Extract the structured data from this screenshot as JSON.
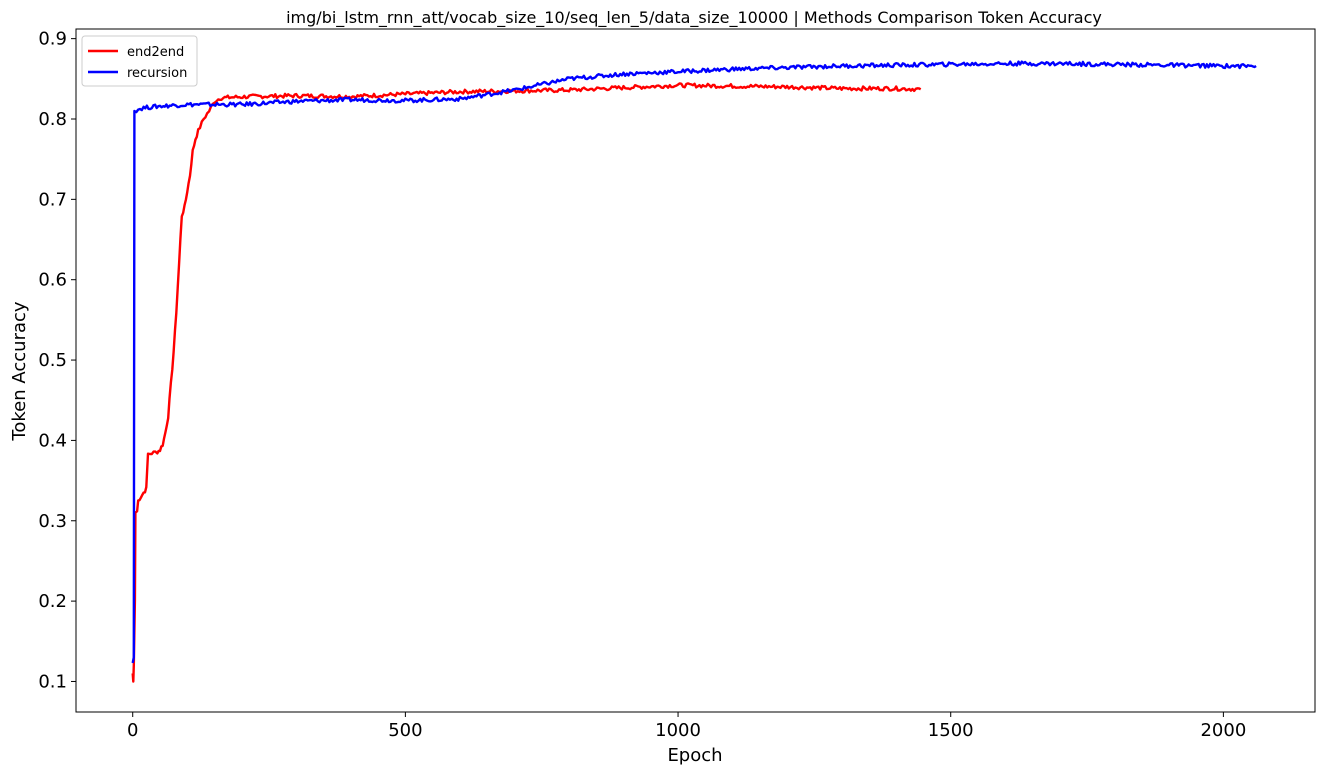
{
  "chart_data": {
    "type": "line",
    "title": "img/bi_lstm_rnn_att/vocab_size_10/seq_len_5/data_size_10000 | Methods Comparison Token Accuracy",
    "xlabel": "Epoch",
    "ylabel": "Token Accuracy",
    "xlim": [
      -104,
      2168
    ],
    "ylim": [
      0.062,
      0.912
    ],
    "x_ticks": [
      0,
      500,
      1000,
      1500,
      2000
    ],
    "y_ticks": [
      0.1,
      0.2,
      0.3,
      0.4,
      0.5,
      0.6,
      0.7,
      0.8,
      0.9
    ],
    "x_tick_labels": [
      "0",
      "500",
      "1000",
      "1500",
      "2000"
    ],
    "y_tick_labels": [
      "0.1",
      "0.2",
      "0.3",
      "0.4",
      "0.5",
      "0.6",
      "0.7",
      "0.8",
      "0.9"
    ],
    "grid": false,
    "legend_position": "top-left",
    "series": [
      {
        "name": "end2end",
        "color": "#ff0000",
        "points": [
          [
            0,
            0.11
          ],
          [
            1,
            0.1
          ],
          [
            2,
            0.12
          ],
          [
            4,
            0.2
          ],
          [
            5,
            0.31
          ],
          [
            8,
            0.312
          ],
          [
            10,
            0.325
          ],
          [
            15,
            0.33
          ],
          [
            20,
            0.335
          ],
          [
            25,
            0.34
          ],
          [
            28,
            0.383
          ],
          [
            35,
            0.384
          ],
          [
            45,
            0.386
          ],
          [
            50,
            0.388
          ],
          [
            55,
            0.395
          ],
          [
            60,
            0.41
          ],
          [
            65,
            0.43
          ],
          [
            70,
            0.47
          ],
          [
            75,
            0.51
          ],
          [
            80,
            0.56
          ],
          [
            85,
            0.62
          ],
          [
            90,
            0.68
          ],
          [
            95,
            0.69
          ],
          [
            100,
            0.71
          ],
          [
            105,
            0.73
          ],
          [
            110,
            0.76
          ],
          [
            115,
            0.775
          ],
          [
            120,
            0.785
          ],
          [
            130,
            0.8
          ],
          [
            140,
            0.81
          ],
          [
            150,
            0.822
          ],
          [
            160,
            0.826
          ],
          [
            180,
            0.827
          ],
          [
            220,
            0.828
          ],
          [
            300,
            0.829
          ],
          [
            400,
            0.828
          ],
          [
            500,
            0.831
          ],
          [
            600,
            0.834
          ],
          [
            700,
            0.835
          ],
          [
            800,
            0.836
          ],
          [
            900,
            0.839
          ],
          [
            1000,
            0.842
          ],
          [
            1100,
            0.841
          ],
          [
            1200,
            0.84
          ],
          [
            1300,
            0.838
          ],
          [
            1400,
            0.838
          ],
          [
            1445,
            0.837
          ]
        ]
      },
      {
        "name": "recursion",
        "color": "#0000ff",
        "points": [
          [
            0,
            0.123
          ],
          [
            2,
            0.13
          ],
          [
            3,
            0.81
          ],
          [
            10,
            0.812
          ],
          [
            20,
            0.814
          ],
          [
            50,
            0.816
          ],
          [
            100,
            0.818
          ],
          [
            200,
            0.818
          ],
          [
            300,
            0.822
          ],
          [
            400,
            0.824
          ],
          [
            500,
            0.823
          ],
          [
            600,
            0.825
          ],
          [
            700,
            0.836
          ],
          [
            800,
            0.85
          ],
          [
            900,
            0.856
          ],
          [
            1000,
            0.859
          ],
          [
            1100,
            0.862
          ],
          [
            1200,
            0.864
          ],
          [
            1300,
            0.866
          ],
          [
            1400,
            0.867
          ],
          [
            1500,
            0.868
          ],
          [
            1600,
            0.869
          ],
          [
            1700,
            0.869
          ],
          [
            1800,
            0.868
          ],
          [
            1900,
            0.867
          ],
          [
            2000,
            0.866
          ],
          [
            2060,
            0.866
          ]
        ]
      }
    ]
  }
}
